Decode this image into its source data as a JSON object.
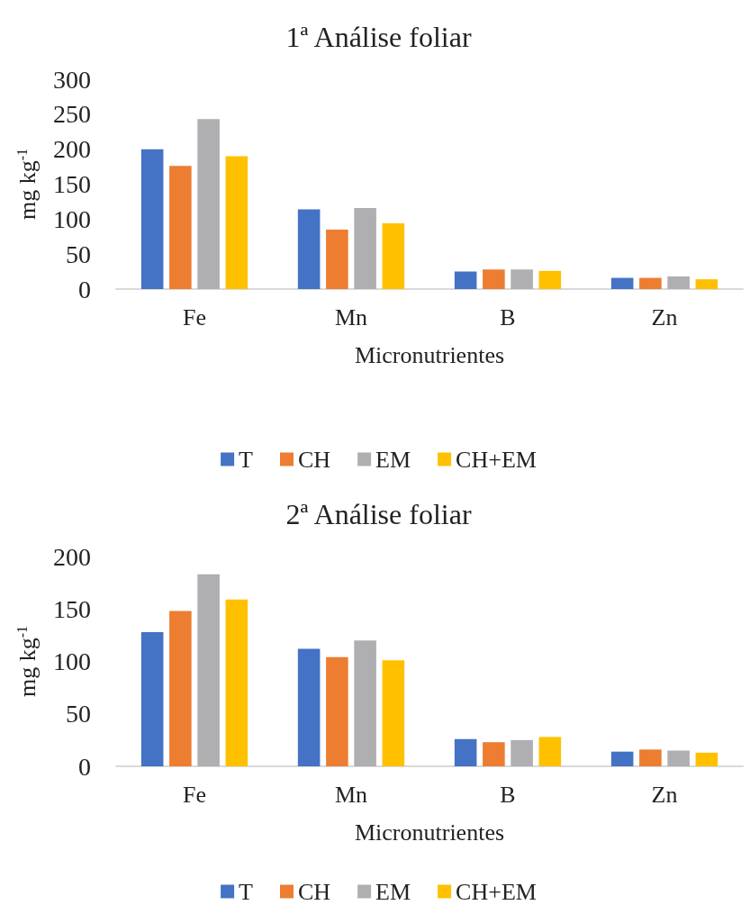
{
  "chart_data": [
    {
      "type": "bar",
      "title": "1ª Análise foliar",
      "xlabel": "Micronutrientes",
      "ylabel": "mg kg$^{-1}$",
      "categories": [
        "Fe",
        "Mn",
        "B",
        "Zn"
      ],
      "ylim": [
        0,
        300
      ],
      "yticks": [
        0,
        50,
        100,
        150,
        200,
        250,
        300
      ],
      "grid": false,
      "legend": "bottom",
      "series": [
        {
          "name": "T",
          "color": "#4472c4",
          "values": [
            200,
            114,
            25,
            16
          ]
        },
        {
          "name": "CH",
          "color": "#ed7d31",
          "values": [
            176,
            85,
            28,
            16
          ]
        },
        {
          "name": "EM",
          "color": "#afafb2",
          "values": [
            243,
            116,
            28,
            18
          ]
        },
        {
          "name": "CH+EM",
          "color": "#ffc000",
          "values": [
            190,
            94,
            26,
            14
          ]
        }
      ]
    },
    {
      "type": "bar",
      "title": "2ª Análise foliar",
      "xlabel": "Micronutrientes",
      "ylabel": "mg kg$^{-1}$",
      "categories": [
        "Fe",
        "Mn",
        "B",
        "Zn"
      ],
      "ylim": [
        0,
        200
      ],
      "yticks": [
        0,
        50,
        100,
        150,
        200
      ],
      "grid": false,
      "legend": "bottom",
      "series": [
        {
          "name": "T",
          "color": "#4472c4",
          "values": [
            128,
            112,
            26,
            14
          ]
        },
        {
          "name": "CH",
          "color": "#ed7d31",
          "values": [
            148,
            104,
            23,
            16
          ]
        },
        {
          "name": "EM",
          "color": "#afafb2",
          "values": [
            183,
            120,
            25,
            15
          ]
        },
        {
          "name": "CH+EM",
          "color": "#ffc000",
          "values": [
            159,
            101,
            28,
            13
          ]
        }
      ]
    }
  ]
}
